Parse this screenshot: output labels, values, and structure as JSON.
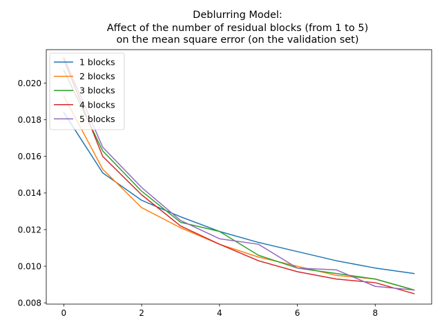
{
  "chart_data": {
    "type": "line",
    "title_lines": [
      "Deblurring Model:",
      "Affect of the number of residual blocks (from 1 to 5)",
      "on the mean square error (on the validation set)"
    ],
    "xlabel": "",
    "ylabel": "",
    "xlim": [
      -0.45,
      9.45
    ],
    "ylim": [
      0.00793,
      0.02183
    ],
    "xticks": [
      0,
      2,
      4,
      6,
      8
    ],
    "yticks": [
      0.008,
      0.01,
      0.012,
      0.014,
      0.016,
      0.018,
      0.02
    ],
    "xtick_labels": [
      "0",
      "2",
      "4",
      "6",
      "8"
    ],
    "ytick_labels": [
      "0.008",
      "0.010",
      "0.012",
      "0.014",
      "0.016",
      "0.018",
      "0.020"
    ],
    "grid": false,
    "legend_position": "upper-left",
    "x": [
      0,
      1,
      2,
      3,
      4,
      5,
      6,
      7,
      8,
      9
    ],
    "series": [
      {
        "name": "1 blocks",
        "color": "#1f77b4",
        "values": [
          0.0184,
          0.0151,
          0.0136,
          0.0127,
          0.0119,
          0.0113,
          0.0108,
          0.0103,
          0.0099,
          0.0096
        ]
      },
      {
        "name": "2 blocks",
        "color": "#ff7f0e",
        "values": [
          0.0193,
          0.0153,
          0.0132,
          0.0121,
          0.0112,
          0.0105,
          0.01,
          0.0095,
          0.0093,
          0.0087
        ]
      },
      {
        "name": "3 blocks",
        "color": "#2ca02c",
        "values": [
          0.0207,
          0.0163,
          0.0141,
          0.0124,
          0.0119,
          0.0106,
          0.0099,
          0.0096,
          0.0093,
          0.0087
        ]
      },
      {
        "name": "4 blocks",
        "color": "#d62728",
        "values": [
          0.0213,
          0.016,
          0.0139,
          0.0122,
          0.0112,
          0.0103,
          0.0097,
          0.0093,
          0.0091,
          0.0085
        ]
      },
      {
        "name": "5 blocks",
        "color": "#9467bd",
        "values": [
          0.0214,
          0.0165,
          0.0143,
          0.0125,
          0.0115,
          0.0112,
          0.0099,
          0.0098,
          0.0089,
          0.0087
        ]
      }
    ]
  }
}
